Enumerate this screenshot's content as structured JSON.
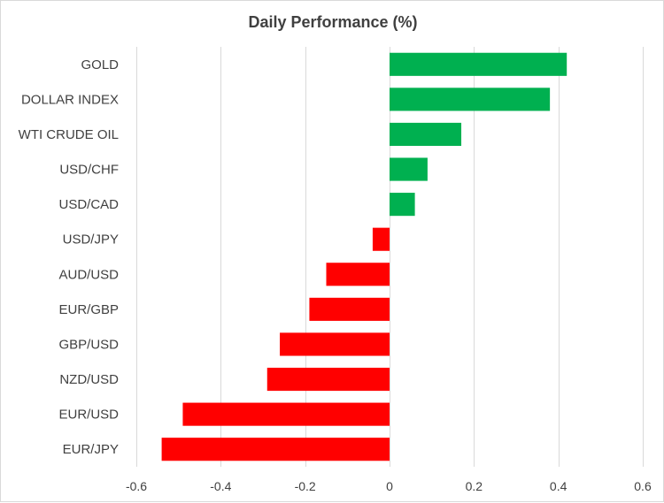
{
  "chart_data": {
    "type": "bar",
    "orientation": "horizontal",
    "title": "Daily Performance (%)",
    "categories": [
      "GOLD",
      "DOLLAR INDEX",
      "WTI CRUDE OIL",
      "USD/CHF",
      "USD/CAD",
      "USD/JPY",
      "AUD/USD",
      "EUR/GBP",
      "GBP/USD",
      "NZD/USD",
      "EUR/USD",
      "EUR/JPY"
    ],
    "values": [
      0.42,
      0.38,
      0.17,
      0.09,
      0.06,
      -0.04,
      -0.15,
      -0.19,
      -0.26,
      -0.29,
      -0.49,
      -0.54
    ],
    "xlim": [
      -0.6,
      0.6
    ],
    "xticks": [
      -0.6,
      -0.4,
      -0.2,
      0,
      0.2,
      0.4,
      0.6
    ],
    "xtick_labels": [
      "-0.6",
      "-0.4",
      "-0.2",
      "0",
      "0.2",
      "0.4",
      "0.6"
    ],
    "xlabel": "",
    "ylabel": "",
    "grid": "vertical",
    "legend": "none",
    "colors": {
      "positive": "#00b050",
      "negative": "#ff0000",
      "grid": "#d9d9d9",
      "text": "#404040"
    }
  }
}
